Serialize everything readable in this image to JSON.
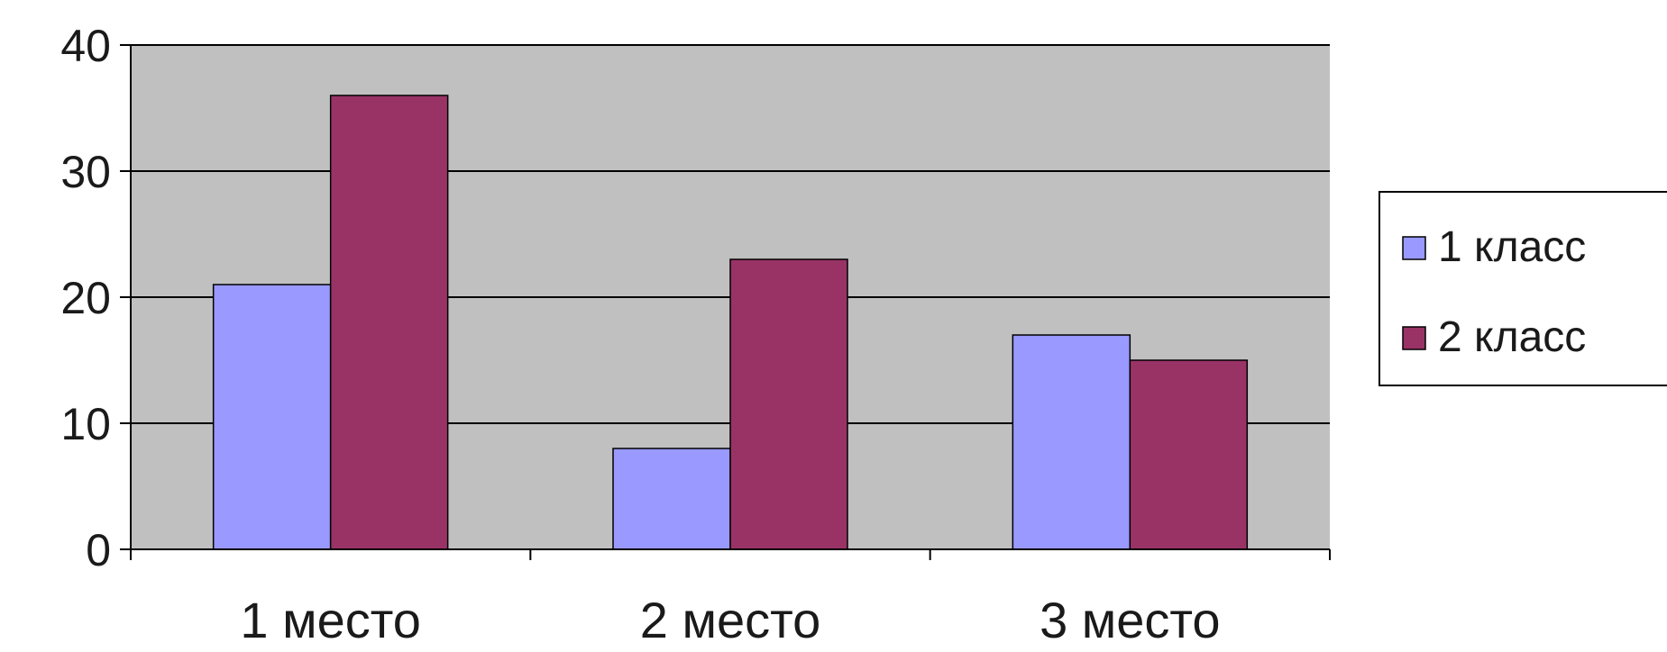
{
  "chart_data": {
    "type": "bar",
    "categories": [
      "1 место",
      "2 место",
      "3 место"
    ],
    "series": [
      {
        "name": "1 класс",
        "values": [
          21,
          8,
          17
        ],
        "color": "#9999ff"
      },
      {
        "name": "2 класс",
        "values": [
          36,
          23,
          15
        ],
        "color": "#993366"
      }
    ],
    "ylim": [
      0,
      40
    ],
    "yticks": [
      "0",
      "10",
      "20",
      "30",
      "40"
    ],
    "plot_background": "#c0c0c0",
    "grid": true,
    "legend": "right"
  }
}
